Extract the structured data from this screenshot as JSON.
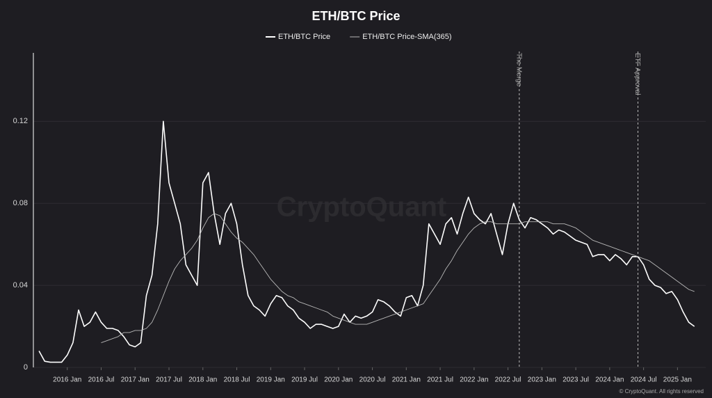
{
  "chart_data": {
    "type": "line",
    "title": "ETH/BTC Price",
    "watermark": "CryptoQuant",
    "footer": "© CryptoQuant. All rights reserved",
    "x": [
      "2015-08",
      "2015-09",
      "2015-10",
      "2015-11",
      "2015-12",
      "2016-01",
      "2016-02",
      "2016-03",
      "2016-04",
      "2016-05",
      "2016-06",
      "2016-07",
      "2016-08",
      "2016-09",
      "2016-10",
      "2016-11",
      "2016-12",
      "2017-01",
      "2017-02",
      "2017-03",
      "2017-04",
      "2017-05",
      "2017-06",
      "2017-07",
      "2017-08",
      "2017-09",
      "2017-10",
      "2017-11",
      "2017-12",
      "2018-01",
      "2018-02",
      "2018-03",
      "2018-04",
      "2018-05",
      "2018-06",
      "2018-07",
      "2018-08",
      "2018-09",
      "2018-10",
      "2018-11",
      "2018-12",
      "2019-01",
      "2019-02",
      "2019-03",
      "2019-04",
      "2019-05",
      "2019-06",
      "2019-07",
      "2019-08",
      "2019-09",
      "2019-10",
      "2019-11",
      "2019-12",
      "2020-01",
      "2020-02",
      "2020-03",
      "2020-04",
      "2020-05",
      "2020-06",
      "2020-07",
      "2020-08",
      "2020-09",
      "2020-10",
      "2020-11",
      "2020-12",
      "2021-01",
      "2021-02",
      "2021-03",
      "2021-04",
      "2021-05",
      "2021-06",
      "2021-07",
      "2021-08",
      "2021-09",
      "2021-10",
      "2021-11",
      "2021-12",
      "2022-01",
      "2022-02",
      "2022-03",
      "2022-04",
      "2022-05",
      "2022-06",
      "2022-07",
      "2022-08",
      "2022-09",
      "2022-10",
      "2022-11",
      "2022-12",
      "2023-01",
      "2023-02",
      "2023-03",
      "2023-04",
      "2023-05",
      "2023-06",
      "2023-07",
      "2023-08",
      "2023-09",
      "2023-10",
      "2023-11",
      "2023-12",
      "2024-01",
      "2024-02",
      "2024-03",
      "2024-04",
      "2024-05",
      "2024-06",
      "2024-07",
      "2024-08",
      "2024-09",
      "2024-10",
      "2024-11",
      "2024-12",
      "2025-01",
      "2025-02",
      "2025-03",
      "2025-04"
    ],
    "series": [
      {
        "name": "ETH/BTC Price",
        "color": "#ffffff",
        "values": [
          0.008,
          0.003,
          0.0025,
          0.0025,
          0.0025,
          0.006,
          0.012,
          0.028,
          0.02,
          0.022,
          0.027,
          0.022,
          0.019,
          0.019,
          0.018,
          0.015,
          0.011,
          0.01,
          0.012,
          0.035,
          0.045,
          0.07,
          0.12,
          0.09,
          0.08,
          0.07,
          0.05,
          0.045,
          0.04,
          0.09,
          0.095,
          0.075,
          0.06,
          0.075,
          0.08,
          0.07,
          0.05,
          0.035,
          0.03,
          0.028,
          0.025,
          0.031,
          0.035,
          0.034,
          0.03,
          0.028,
          0.024,
          0.022,
          0.019,
          0.021,
          0.021,
          0.02,
          0.019,
          0.02,
          0.026,
          0.022,
          0.025,
          0.024,
          0.025,
          0.027,
          0.033,
          0.032,
          0.03,
          0.027,
          0.025,
          0.034,
          0.035,
          0.03,
          0.04,
          0.07,
          0.065,
          0.06,
          0.07,
          0.073,
          0.065,
          0.075,
          0.083,
          0.075,
          0.072,
          0.07,
          0.075,
          0.065,
          0.055,
          0.07,
          0.08,
          0.072,
          0.068,
          0.073,
          0.072,
          0.07,
          0.068,
          0.065,
          0.067,
          0.066,
          0.064,
          0.062,
          0.061,
          0.06,
          0.054,
          0.055,
          0.055,
          0.052,
          0.055,
          0.053,
          0.05,
          0.054,
          0.054,
          0.05,
          0.043,
          0.04,
          0.039,
          0.036,
          0.037,
          0.033,
          0.027,
          0.022,
          0.02
        ]
      },
      {
        "name": "ETH/BTC Price-SMA(365)",
        "color": "#b8b8b8",
        "values": [
          null,
          null,
          null,
          null,
          null,
          null,
          null,
          null,
          null,
          null,
          null,
          0.012,
          0.013,
          0.014,
          0.015,
          0.017,
          0.017,
          0.018,
          0.018,
          0.019,
          0.022,
          0.028,
          0.035,
          0.042,
          0.048,
          0.052,
          0.055,
          0.058,
          0.062,
          0.068,
          0.073,
          0.075,
          0.074,
          0.07,
          0.066,
          0.063,
          0.061,
          0.058,
          0.055,
          0.051,
          0.047,
          0.043,
          0.04,
          0.037,
          0.035,
          0.034,
          0.032,
          0.031,
          0.03,
          0.029,
          0.028,
          0.027,
          0.025,
          0.024,
          0.023,
          0.022,
          0.021,
          0.021,
          0.021,
          0.022,
          0.023,
          0.024,
          0.025,
          0.026,
          0.027,
          0.028,
          0.029,
          0.03,
          0.031,
          0.035,
          0.039,
          0.043,
          0.048,
          0.052,
          0.057,
          0.061,
          0.065,
          0.068,
          0.07,
          0.071,
          0.071,
          0.07,
          0.07,
          0.07,
          0.07,
          0.07,
          0.071,
          0.071,
          0.071,
          0.071,
          0.071,
          0.07,
          0.07,
          0.07,
          0.069,
          0.068,
          0.066,
          0.064,
          0.062,
          0.061,
          0.06,
          0.059,
          0.058,
          0.057,
          0.056,
          0.055,
          0.054,
          0.053,
          0.052,
          0.05,
          0.048,
          0.046,
          0.044,
          0.042,
          0.04,
          0.038,
          0.037
        ]
      }
    ],
    "annotations": [
      {
        "x": "2022-09",
        "text": "The Merge"
      },
      {
        "x": "2024-06",
        "text": "ETF Approval"
      }
    ],
    "xlim": [
      "2015-07",
      "2025-06"
    ],
    "xticks": [
      {
        "value": "2016-01",
        "label": "2016 Jan"
      },
      {
        "value": "2016-07",
        "label": "2016 Jul"
      },
      {
        "value": "2017-01",
        "label": "2017 Jan"
      },
      {
        "value": "2017-07",
        "label": "2017 Jul"
      },
      {
        "value": "2018-01",
        "label": "2018 Jan"
      },
      {
        "value": "2018-07",
        "label": "2018 Jul"
      },
      {
        "value": "2019-01",
        "label": "2019 Jan"
      },
      {
        "value": "2019-07",
        "label": "2019 Jul"
      },
      {
        "value": "2020-01",
        "label": "2020 Jan"
      },
      {
        "value": "2020-07",
        "label": "2020 Jul"
      },
      {
        "value": "2021-01",
        "label": "2021 Jan"
      },
      {
        "value": "2021-07",
        "label": "2021 Jul"
      },
      {
        "value": "2022-01",
        "label": "2022 Jan"
      },
      {
        "value": "2022-07",
        "label": "2022 Jul"
      },
      {
        "value": "2023-01",
        "label": "2023 Jan"
      },
      {
        "value": "2023-07",
        "label": "2023 Jul"
      },
      {
        "value": "2024-01",
        "label": "2024 Jan"
      },
      {
        "value": "2024-07",
        "label": "2024 Jul"
      },
      {
        "value": "2025-01",
        "label": "2025 Jan"
      }
    ],
    "ylim": [
      0,
      0.152
    ],
    "yticks": [
      0,
      0.04,
      0.08,
      0.12
    ],
    "grid": true,
    "legend": "top"
  }
}
